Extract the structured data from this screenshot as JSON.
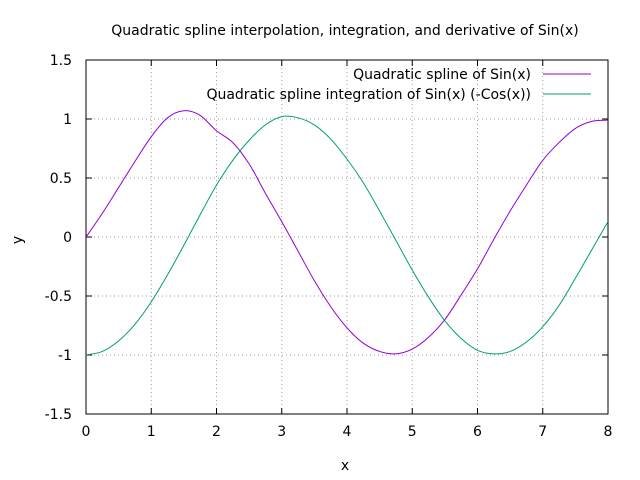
{
  "chart_data": {
    "type": "line",
    "title": "Quadratic spline interpolation, integration, and derivative of Sin(x)",
    "xlabel": "x",
    "ylabel": "y",
    "xlim": [
      0,
      8
    ],
    "ylim": [
      -1.5,
      1.5
    ],
    "xticks": [
      0,
      1,
      2,
      3,
      4,
      5,
      6,
      7,
      8
    ],
    "yticks": [
      -1.5,
      -1,
      -0.5,
      0,
      0.5,
      1,
      1.5
    ],
    "xtick_labels": [
      "0",
      "1",
      "2",
      "3",
      "4",
      "5",
      "6",
      "7",
      "8"
    ],
    "ytick_labels": [
      "-1.5",
      "-1",
      "-0.5",
      "0",
      "0.5",
      "1",
      "1.5"
    ],
    "grid": true,
    "legend_position": "top-right",
    "series": [
      {
        "name": "Quadratic spline of Sin(x)",
        "color": "#9400d3",
        "x": [
          0,
          0.25,
          0.5,
          0.75,
          1,
          1.25,
          1.5,
          1.75,
          2,
          2.25,
          2.5,
          2.75,
          3,
          3.25,
          3.5,
          3.75,
          4,
          4.25,
          4.5,
          4.75,
          5,
          5.25,
          5.5,
          5.75,
          6,
          6.25,
          6.5,
          6.75,
          7,
          7.25,
          7.5,
          7.75,
          8
        ],
        "y": [
          0,
          0.2,
          0.42,
          0.64,
          0.85,
          1.01,
          1.07,
          1.03,
          0.9,
          0.8,
          0.62,
          0.37,
          0.13,
          -0.12,
          -0.37,
          -0.59,
          -0.77,
          -0.9,
          -0.97,
          -0.99,
          -0.95,
          -0.85,
          -0.7,
          -0.49,
          -0.27,
          -0.02,
          0.22,
          0.44,
          0.65,
          0.8,
          0.92,
          0.98,
          0.99
        ]
      },
      {
        "name": "Quadratic spline integration of Sin(x) (-Cos(x))",
        "color": "#009e73",
        "x": [
          0,
          0.25,
          0.5,
          0.75,
          1,
          1.25,
          1.5,
          1.75,
          2,
          2.25,
          2.5,
          2.75,
          3,
          3.25,
          3.5,
          3.75,
          4,
          4.25,
          4.5,
          4.75,
          5,
          5.25,
          5.5,
          5.75,
          6,
          6.25,
          6.5,
          6.75,
          7,
          7.25,
          7.5,
          7.75,
          8
        ],
        "y": [
          -1,
          -0.97,
          -0.88,
          -0.74,
          -0.55,
          -0.32,
          -0.07,
          0.19,
          0.44,
          0.65,
          0.82,
          0.95,
          1.02,
          1.01,
          0.95,
          0.83,
          0.66,
          0.46,
          0.22,
          -0.03,
          -0.28,
          -0.51,
          -0.71,
          -0.86,
          -0.96,
          -0.99,
          -0.97,
          -0.89,
          -0.76,
          -0.58,
          -0.35,
          -0.11,
          0.13
        ]
      }
    ]
  }
}
